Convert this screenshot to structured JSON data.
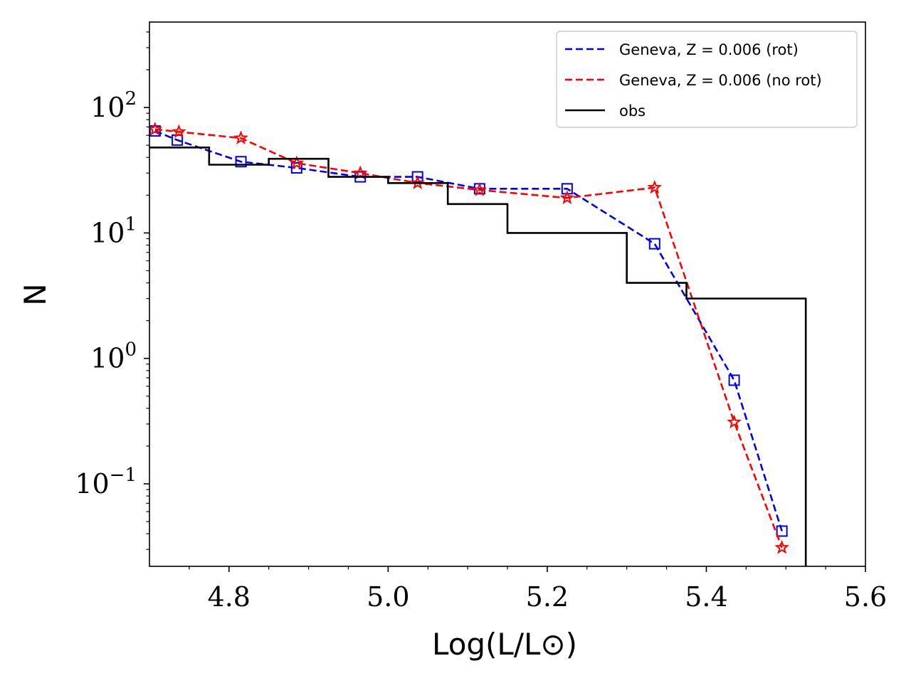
{
  "chart_data": {
    "type": "line",
    "title": "",
    "xlabel": "Log(L/L⊙)",
    "ylabel": "N",
    "xlim": [
      4.7,
      5.6
    ],
    "ylim": [
      0.022,
      480
    ],
    "yscale": "log",
    "x_ticks": [
      {
        "value": 4.8,
        "label": "4.8"
      },
      {
        "value": 5.0,
        "label": "5.0"
      },
      {
        "value": 5.2,
        "label": "5.2"
      },
      {
        "value": 5.4,
        "label": "5.4"
      },
      {
        "value": 5.6,
        "label": "5.6"
      }
    ],
    "y_ticks": [
      {
        "value": 0.1,
        "base": "10",
        "exp": "−1"
      },
      {
        "value": 1,
        "base": "10",
        "exp": "0"
      },
      {
        "value": 10,
        "base": "10",
        "exp": "1"
      },
      {
        "value": 100,
        "base": "10",
        "exp": "2"
      }
    ],
    "legend": {
      "placement": "top-right"
    },
    "series": [
      {
        "name": "Geneva, Z = 0.006 (rot)",
        "color": "#0000ee",
        "style": "dashed",
        "marker": "square",
        "x": [
          4.707,
          4.735,
          4.815,
          4.885,
          4.965,
          5.037,
          5.115,
          5.225,
          5.335,
          5.435,
          5.495
        ],
        "y": [
          65,
          55,
          37,
          33,
          28,
          28,
          22.5,
          22.5,
          8.2,
          0.67,
          0.042
        ]
      },
      {
        "name": "Geneva, Z = 0.006 (no rot)",
        "color": "#ff0000",
        "style": "dashed",
        "marker": "star",
        "x": [
          4.707,
          4.737,
          4.815,
          4.885,
          4.965,
          5.037,
          5.115,
          5.225,
          5.335,
          5.435,
          5.495
        ],
        "y": [
          67,
          64,
          57,
          36,
          30,
          25,
          22,
          19,
          23,
          0.31,
          0.031
        ]
      },
      {
        "name": "obs",
        "color": "#000000",
        "style": "step",
        "marker": "none",
        "edges": [
          4.7,
          4.775,
          4.85,
          4.925,
          5.0,
          5.075,
          5.15,
          5.3,
          5.375,
          5.525
        ],
        "values": [
          48,
          35,
          39,
          28,
          25,
          17,
          10,
          4,
          3
        ]
      }
    ]
  }
}
